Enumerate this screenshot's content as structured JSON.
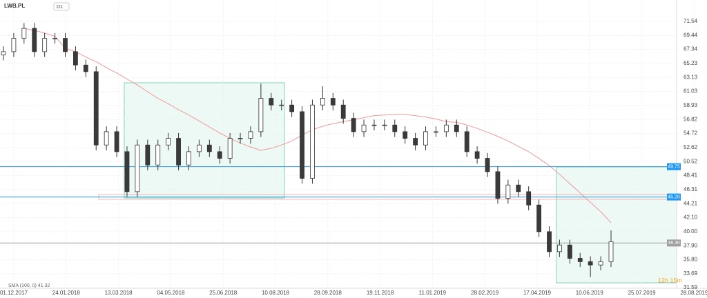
{
  "header": {
    "symbol": "LWB.PL",
    "timeframe": "D1"
  },
  "chart_data": {
    "type": "candlestick",
    "open": [
      66.5,
      67,
      69,
      70.5,
      67,
      69,
      69,
      67,
      65,
      64,
      53,
      55,
      52,
      46,
      53,
      50,
      53,
      54,
      50,
      52,
      53,
      52,
      51,
      54,
      54,
      55,
      60,
      59,
      59,
      58,
      48,
      59,
      60,
      59,
      57,
      55,
      56,
      56,
      56,
      55,
      54,
      53,
      55,
      55,
      56,
      55,
      52,
      51,
      49,
      45,
      47,
      46,
      44,
      40,
      37,
      38,
      36,
      35.5,
      35,
      35.5
    ],
    "high": [
      67.8,
      69.8,
      71.3,
      71.3,
      69.8,
      69.8,
      69.8,
      67.8,
      65.8,
      64.8,
      55.8,
      55.8,
      52.8,
      53.8,
      53.8,
      53.8,
      54.8,
      54.8,
      52.8,
      53.8,
      53.8,
      52.8,
      54.8,
      54.8,
      55.8,
      62.2,
      60.8,
      59.8,
      59.8,
      58.8,
      59.8,
      61.8,
      60.8,
      59.8,
      57.8,
      56.8,
      56.8,
      56.8,
      56.8,
      55.8,
      54.8,
      55.8,
      55.8,
      56.8,
      56.8,
      55.8,
      52.8,
      51.8,
      49.8,
      47.8,
      47.8,
      46.8,
      44.8,
      40.8,
      38.8,
      38.8,
      36.8,
      36.3,
      36.3,
      40.2
    ],
    "low": [
      65.7,
      66.2,
      68.2,
      66.2,
      66.2,
      68.2,
      66.2,
      64.2,
      63.2,
      52.2,
      52.2,
      51.2,
      45.2,
      45.2,
      49.2,
      49.2,
      52.2,
      49.2,
      49.2,
      51.2,
      51.2,
      50.2,
      50.2,
      53.2,
      53.2,
      54.2,
      58.2,
      58.2,
      57.2,
      47.2,
      47.2,
      58.2,
      58.2,
      56.2,
      54.2,
      54.2,
      55.2,
      55.2,
      54.2,
      53.2,
      52.2,
      52.2,
      54.2,
      54.2,
      54.2,
      51.2,
      50.2,
      48.2,
      44.2,
      44.2,
      45.2,
      43.2,
      39.2,
      36.2,
      36.2,
      35.2,
      34.7,
      33.2,
      34.2,
      34.7
    ],
    "close": [
      67,
      69,
      70.5,
      67,
      69,
      69,
      67,
      65,
      64,
      53,
      55,
      52,
      46,
      53,
      50,
      53,
      54,
      50,
      52,
      53,
      52,
      51,
      54,
      54,
      55,
      60,
      59,
      59,
      58,
      48,
      59,
      60,
      59,
      57,
      55,
      56,
      56,
      56,
      55,
      54,
      53,
      55,
      55,
      56,
      55,
      52,
      51,
      49,
      45,
      47,
      46,
      44,
      40,
      37,
      38,
      36,
      35.5,
      35,
      35.5,
      38.5
    ],
    "color_up": "#ffffff",
    "color_down": "#3a3a3a",
    "sma": {
      "name": "SMA (100, 0) 41.32",
      "color": "#ef9a9a",
      "values": [
        null,
        null,
        70.5,
        70.2,
        69.8,
        69.3,
        67.5,
        67,
        66.2,
        65.5,
        64.6,
        63.8,
        62.9,
        62,
        61,
        60,
        59.2,
        58.3,
        57.5,
        56.6,
        55.7,
        54.8,
        54,
        53.3,
        52.7,
        52.2,
        52.5,
        53,
        53.6,
        54.5,
        55.3,
        55.8,
        56.2,
        56.5,
        56.8,
        57.1,
        57.4,
        57.5,
        57.6,
        57.6,
        57.4,
        57.2,
        56.9,
        56.5,
        56.4,
        56,
        55.5,
        54.9,
        54.3,
        53.6,
        52.8,
        52,
        51,
        49.9,
        48.6,
        47.2,
        45.8,
        44.4,
        43,
        41.32
      ]
    },
    "levels": [
      {
        "value": 49.75,
        "label": "49.75",
        "color": "#2196f3"
      },
      {
        "value": 45.2,
        "label": "45.20",
        "color": "#2196f3"
      },
      {
        "value": 38.3,
        "label": "38.30",
        "color": "#9e9e9e"
      }
    ],
    "ylim": [
      31.5,
      74.75
    ],
    "yticks": [
      71.54,
      69.44,
      67.34,
      65.23,
      63.13,
      61.03,
      58.93,
      56.82,
      54.72,
      52.62,
      50.52,
      48.41,
      46.31,
      44.21,
      {
        "value": 42.1,
        "label": "42.10"
      },
      {
        "value": 40,
        "label": "40.00"
      },
      {
        "value": 37.9,
        "label": "37.90"
      },
      {
        "value": 35.8,
        "label": "35.80"
      },
      33.69,
      31.59
    ],
    "x_labels": [
      "01.12.2017",
      "24.01.2018",
      "13.03.2018",
      "04.05.2018",
      "25.06.2018",
      "10.08.2018",
      "28.09.2018",
      "19.11.2018",
      "11.01.2019",
      "28.02.2019",
      "17.04.2019",
      "10.06.2019",
      "25.07.2019",
      "28.08.2019"
    ],
    "countdown": "12h 15m",
    "grid": true
  }
}
